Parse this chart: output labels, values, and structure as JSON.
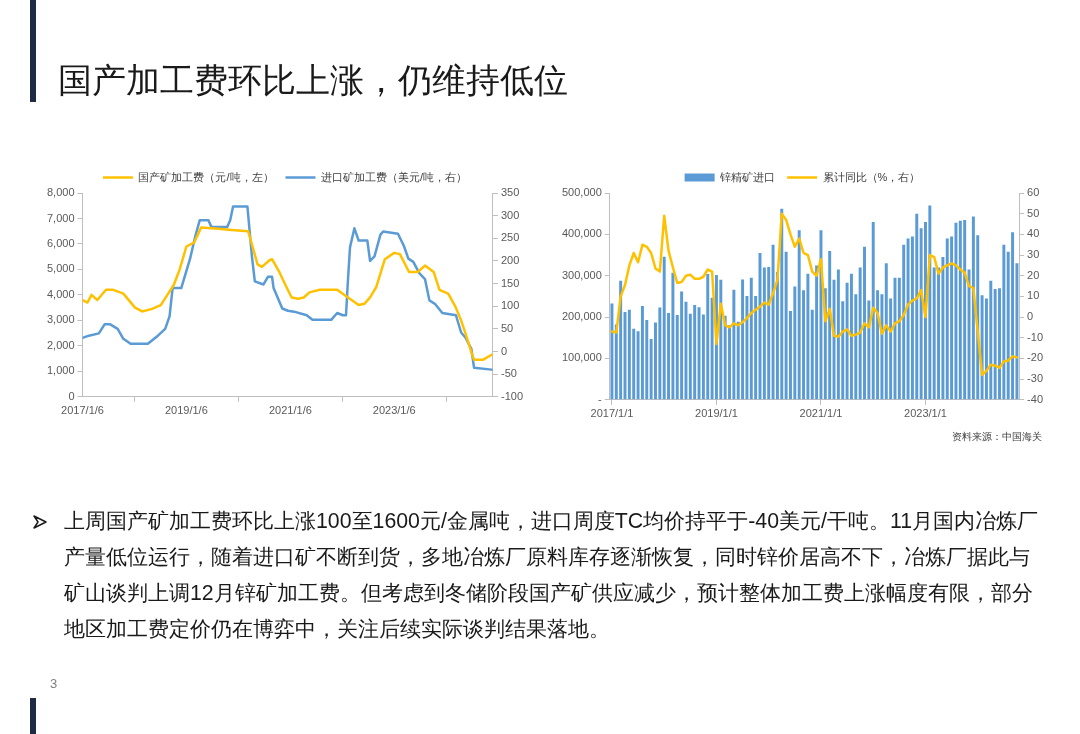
{
  "chart_data": [
    {
      "type": "other",
      "title": "国产加工费环比上涨，仍维持低位"
    },
    {
      "type": "line",
      "marker": "none",
      "legend": "top",
      "grid": false,
      "xlim": [
        "2017-01-06",
        "2024-11-30"
      ],
      "xticks": [
        {
          "value": "2017-01-06",
          "label": "2017/1/6"
        },
        {
          "value": "2019-01-06",
          "label": "2019/1/6"
        },
        {
          "value": "2021-01-06",
          "label": "2021/1/6"
        },
        {
          "value": "2023-01-06",
          "label": "2023/1/6"
        }
      ],
      "ylim": [
        0,
        8000
      ],
      "yticks": [
        0,
        {
          "value": 1000,
          "label": "1,000"
        },
        {
          "value": 2000,
          "label": "2,000"
        },
        {
          "value": 3000,
          "label": "3,000"
        },
        {
          "value": 4000,
          "label": "4,000"
        },
        {
          "value": 5000,
          "label": "5,000"
        },
        {
          "value": 6000,
          "label": "6,000"
        },
        {
          "value": 7000,
          "label": "7,000"
        },
        {
          "value": 8000,
          "label": "8,000"
        }
      ],
      "y2lim": [
        -100,
        350
      ],
      "y2ticks": [
        -100,
        -50,
        0,
        50,
        100,
        150,
        200,
        250,
        300,
        350
      ],
      "series": [
        {
          "name": "国产矿加工费（元/吨，左）",
          "color": "#ffc000",
          "x": [
            "2017-01-06",
            "2017-02-10",
            "2017-03-10",
            "2017-04-20",
            "2017-06-20",
            "2017-08-10",
            "2017-10-20",
            "2018-01-10",
            "2018-03-01",
            "2018-05-10",
            "2018-07-10",
            "2018-08-20",
            "2018-10-10",
            "2018-11-20",
            "2019-01-06",
            "2019-03-01",
            "2019-04-20",
            "2019-08-20",
            "2019-11-20",
            "2020-03-15",
            "2020-04-15",
            "2020-05-20",
            "2020-06-20",
            "2020-08-10",
            "2020-08-30",
            "2020-10-20",
            "2020-12-10",
            "2021-01-15",
            "2021-03-01",
            "2021-04-10",
            "2021-05-20",
            "2021-08-01",
            "2021-12-01",
            "2022-02-15",
            "2022-05-01",
            "2022-06-10",
            "2022-07-20",
            "2022-09-01",
            "2022-11-01",
            "2023-01-06",
            "2023-02-15",
            "2023-04-20",
            "2023-06-20",
            "2023-08-10",
            "2023-10-10",
            "2023-11-20",
            "2024-01-20",
            "2024-03-10",
            "2024-04-20",
            "2024-05-20",
            "2024-07-01",
            "2024-07-20",
            "2024-09-20",
            "2024-11-20"
          ],
          "values": [
            3800,
            3700,
            4000,
            3800,
            4200,
            4200,
            4050,
            3500,
            3350,
            3450,
            3600,
            3950,
            4400,
            5000,
            5900,
            6050,
            6650,
            6600,
            6550,
            6500,
            5900,
            5200,
            5100,
            5350,
            5400,
            4900,
            4300,
            3900,
            3850,
            3900,
            4100,
            4200,
            4200,
            3900,
            3600,
            3650,
            3900,
            4300,
            5400,
            5650,
            5600,
            4900,
            4900,
            5150,
            4900,
            4200,
            4050,
            3550,
            3000,
            2500,
            1750,
            1450,
            1450,
            1650
          ]
        },
        {
          "name": "进口矿加工费（美元/吨，右）",
          "color": "#5b9bd5",
          "axis": "y2",
          "x": [
            "2017-01-06",
            "2017-02-20",
            "2017-05-01",
            "2017-06-10",
            "2017-07-20",
            "2017-09-10",
            "2017-10-20",
            "2017-12-10",
            "2018-04-10",
            "2018-06-20",
            "2018-08-10",
            "2018-09-10",
            "2018-10-01",
            "2018-12-01",
            "2019-02-01",
            "2019-03-10",
            "2019-04-10",
            "2019-06-10",
            "2019-07-01",
            "2019-10-20",
            "2019-11-10",
            "2019-11-30",
            "2020-03-10",
            "2020-04-10",
            "2020-05-01",
            "2020-07-01",
            "2020-08-01",
            "2020-08-30",
            "2020-09-10",
            "2020-11-10",
            "2020-12-20",
            "2021-02-01",
            "2021-05-01",
            "2021-06-10",
            "2021-10-20",
            "2021-12-01",
            "2022-01-10",
            "2022-02-01",
            "2022-02-15",
            "2022-03-01",
            "2022-04-01",
            "2022-05-01",
            "2022-07-01",
            "2022-07-20",
            "2022-08-20",
            "2022-10-01",
            "2022-10-20",
            "2023-02-01",
            "2023-03-15",
            "2023-04-15",
            "2023-05-20",
            "2023-07-01",
            "2023-08-10",
            "2023-09-10",
            "2023-10-20",
            "2023-12-10",
            "2024-03-15",
            "2024-04-20",
            "2024-05-20",
            "2024-07-01",
            "2024-07-20",
            "2024-11-20"
          ],
          "values": [
            30,
            35,
            40,
            60,
            60,
            50,
            28,
            17,
            17,
            35,
            50,
            78,
            140,
            140,
            205,
            255,
            290,
            290,
            275,
            275,
            290,
            320,
            320,
            212,
            155,
            148,
            165,
            165,
            140,
            95,
            90,
            88,
            80,
            70,
            70,
            85,
            80,
            80,
            160,
            230,
            272,
            245,
            245,
            200,
            210,
            258,
            265,
            260,
            233,
            205,
            198,
            173,
            160,
            113,
            105,
            85,
            80,
            42,
            31,
            6,
            -36,
            -40
          ]
        }
      ]
    },
    {
      "type": "bar",
      "marker": "none",
      "legend": "top",
      "grid": false,
      "annotations": [
        "资料来源：中国海关"
      ],
      "categories": [
        "2017/1/1",
        null,
        null,
        null,
        null,
        null,
        null,
        null,
        null,
        null,
        null,
        null,
        null,
        null,
        null,
        null,
        null,
        null,
        null,
        null,
        null,
        null,
        null,
        null,
        "2019/1/1",
        null,
        null,
        null,
        null,
        null,
        null,
        null,
        null,
        null,
        null,
        null,
        null,
        null,
        null,
        null,
        null,
        null,
        null,
        null,
        null,
        null,
        null,
        null,
        "2021/1/1",
        null,
        null,
        null,
        null,
        null,
        null,
        null,
        null,
        null,
        null,
        null,
        null,
        null,
        null,
        null,
        null,
        null,
        null,
        null,
        null,
        null,
        null,
        null,
        "2023/1/1",
        null,
        null,
        null,
        null,
        null,
        null,
        null,
        null,
        null,
        null,
        null,
        null,
        null,
        null,
        null,
        null,
        null,
        null,
        null,
        null,
        null
      ],
      "ylim": [
        0,
        500000
      ],
      "yticks": [
        {
          "value": 0,
          "label": "-"
        },
        {
          "value": 100000,
          "label": "100,000"
        },
        {
          "value": 200000,
          "label": "200,000"
        },
        {
          "value": 300000,
          "label": "300,000"
        },
        {
          "value": 400000,
          "label": "400,000"
        },
        {
          "value": 500000,
          "label": "500,000"
        }
      ],
      "y2lim": [
        -40,
        60
      ],
      "y2ticks": [
        -40,
        -30,
        -20,
        -10,
        0,
        10,
        20,
        30,
        40,
        50,
        60
      ],
      "series": [
        {
          "name": "锌精矿进口",
          "color": "#5b9bd5",
          "values": [
            233000,
            182000,
            288000,
            212000,
            218000,
            172000,
            166000,
            227000,
            193000,
            147000,
            187000,
            223000,
            346000,
            210000,
            307000,
            205000,
            262000,
            237000,
            208000,
            229000,
            224000,
            206000,
            304000,
            247000,
            302000,
            290000,
            203000,
            180000,
            266000,
            189000,
            291000,
            251000,
            295000,
            251000,
            355000,
            320000,
            321000,
            375000,
            309000,
            462000,
            358000,
            215000,
            274000,
            410000,
            265000,
            305000,
            218000,
            325000,
            410000,
            270000,
            360000,
            290000,
            315000,
            238000,
            283000,
            305000,
            255000,
            320000,
            370000,
            240000,
            430000,
            265000,
            255000,
            330000,
            245000,
            295000,
            295000,
            375000,
            390000,
            395000,
            450000,
            415000,
            430000,
            470000,
            320000,
            320000,
            345000,
            390000,
            395000,
            428000,
            433000,
            435000,
            315000,
            443000,
            398000,
            253000,
            245000,
            288000,
            268000,
            270000,
            375000,
            358000,
            405000,
            330000
          ]
        },
        {
          "name": "累计同比（%，右）",
          "type": "line",
          "color": "#ffc000",
          "axis": "y2",
          "values": [
            -7,
            -7.5,
            10,
            15.5,
            25,
            31,
            26.5,
            35,
            34,
            31,
            23.5,
            22,
            49,
            32,
            24,
            16.5,
            17,
            20,
            20.5,
            18.5,
            18.5,
            19.5,
            23,
            22,
            -13,
            6.5,
            -4,
            -5,
            -3,
            -4,
            -2.5,
            -0.5,
            2,
            3.5,
            5,
            7,
            6,
            11.5,
            18,
            50,
            47,
            40,
            34,
            38,
            31,
            30,
            22,
            20,
            28,
            -2,
            4,
            -9,
            -9.5,
            -7,
            -6,
            -9,
            -8.5,
            -7.5,
            -3,
            -5,
            4.5,
            2,
            -8,
            -4,
            -7,
            -3,
            -2,
            1,
            6,
            8,
            9,
            13,
            0,
            30,
            29,
            21,
            24,
            25,
            26,
            25,
            23,
            21.5,
            15,
            14,
            -7,
            -28,
            -26,
            -23,
            -23.5,
            -24.5,
            -21.5,
            -21,
            -19,
            -19.5
          ]
        }
      ]
    },
    {
      "type": "other",
      "annotations": [
        "上周国产矿加工费环比上涨100至1600元/金属吨，进口周度TC均价持平于-40美元/干吨。11月国内冶炼厂产量低位运行，随着进口矿不断到货，多地冶炼厂原料库存逐渐恢复，同时锌价居高不下，冶炼厂据此与矿山谈判上调12月锌矿加工费。但考虑到冬储阶段国产矿供应减少，预计整体加工费上涨幅度有限，部分地区加工费定价仍在博弈中，关注后续实际谈判结果落地。",
        "3"
      ]
    }
  ]
}
